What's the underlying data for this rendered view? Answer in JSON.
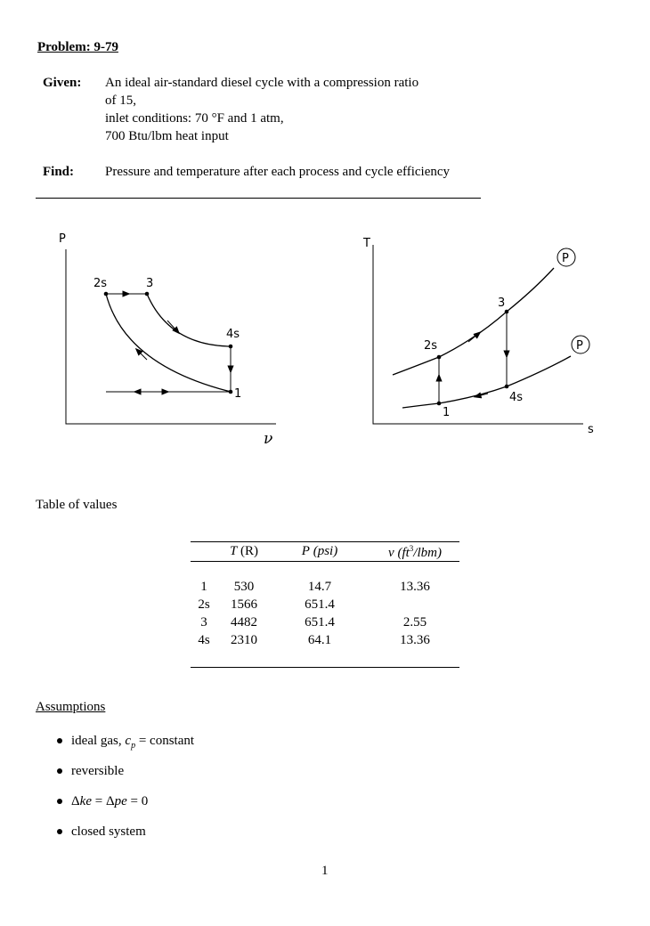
{
  "problem": {
    "title": "Problem: 9-79"
  },
  "given": {
    "label": "Given:",
    "lines": [
      "An ideal air-standard diesel cycle with a compression ratio",
      "of 15,",
      "inlet conditions: 70 °F and 1 atm,",
      "700 Btu/lbm heat input"
    ]
  },
  "find": {
    "label": "Find:",
    "text": "Pressure and temperature after each process and cycle efficiency"
  },
  "pv_diagram": {
    "y_axis": "P",
    "x_axis": "ν",
    "points": [
      "2s",
      "3",
      "4s",
      "1"
    ]
  },
  "ts_diagram": {
    "y_axis": "T",
    "x_axis": "s",
    "points": [
      "2s",
      "3",
      "4s",
      "1"
    ],
    "isobar_label": "P"
  },
  "table": {
    "caption": "Table of values",
    "headers": [
      "",
      "T (R)",
      "P (psi)",
      "ν (ft³/lbm)"
    ],
    "header_parts": {
      "t": "T",
      "t_unit": "(R)",
      "p": "P",
      "p_unit": "(psi)",
      "v": "ν",
      "v_unit_open": "(ft",
      "v_exp": "3",
      "v_unit_close": "/lbm)"
    },
    "rows": [
      [
        "1",
        "530",
        "14.7",
        "13.36"
      ],
      [
        "2s",
        "1566",
        "651.4",
        ""
      ],
      [
        "3",
        "4482",
        "651.4",
        "2.55"
      ],
      [
        "4s",
        "2310",
        "64.1",
        "13.36"
      ]
    ]
  },
  "assumptions": {
    "title": "Assumptions",
    "items": [
      {
        "pre": "ideal gas, ",
        "var": "c",
        "sub": "p",
        "post": " = constant"
      },
      {
        "pre": "reversible"
      },
      {
        "pre": "Δ",
        "var": "ke",
        "mid": " = Δ",
        "var2": "pe",
        "post": " = 0"
      },
      {
        "pre": "closed system"
      }
    ]
  },
  "page_number": "1"
}
